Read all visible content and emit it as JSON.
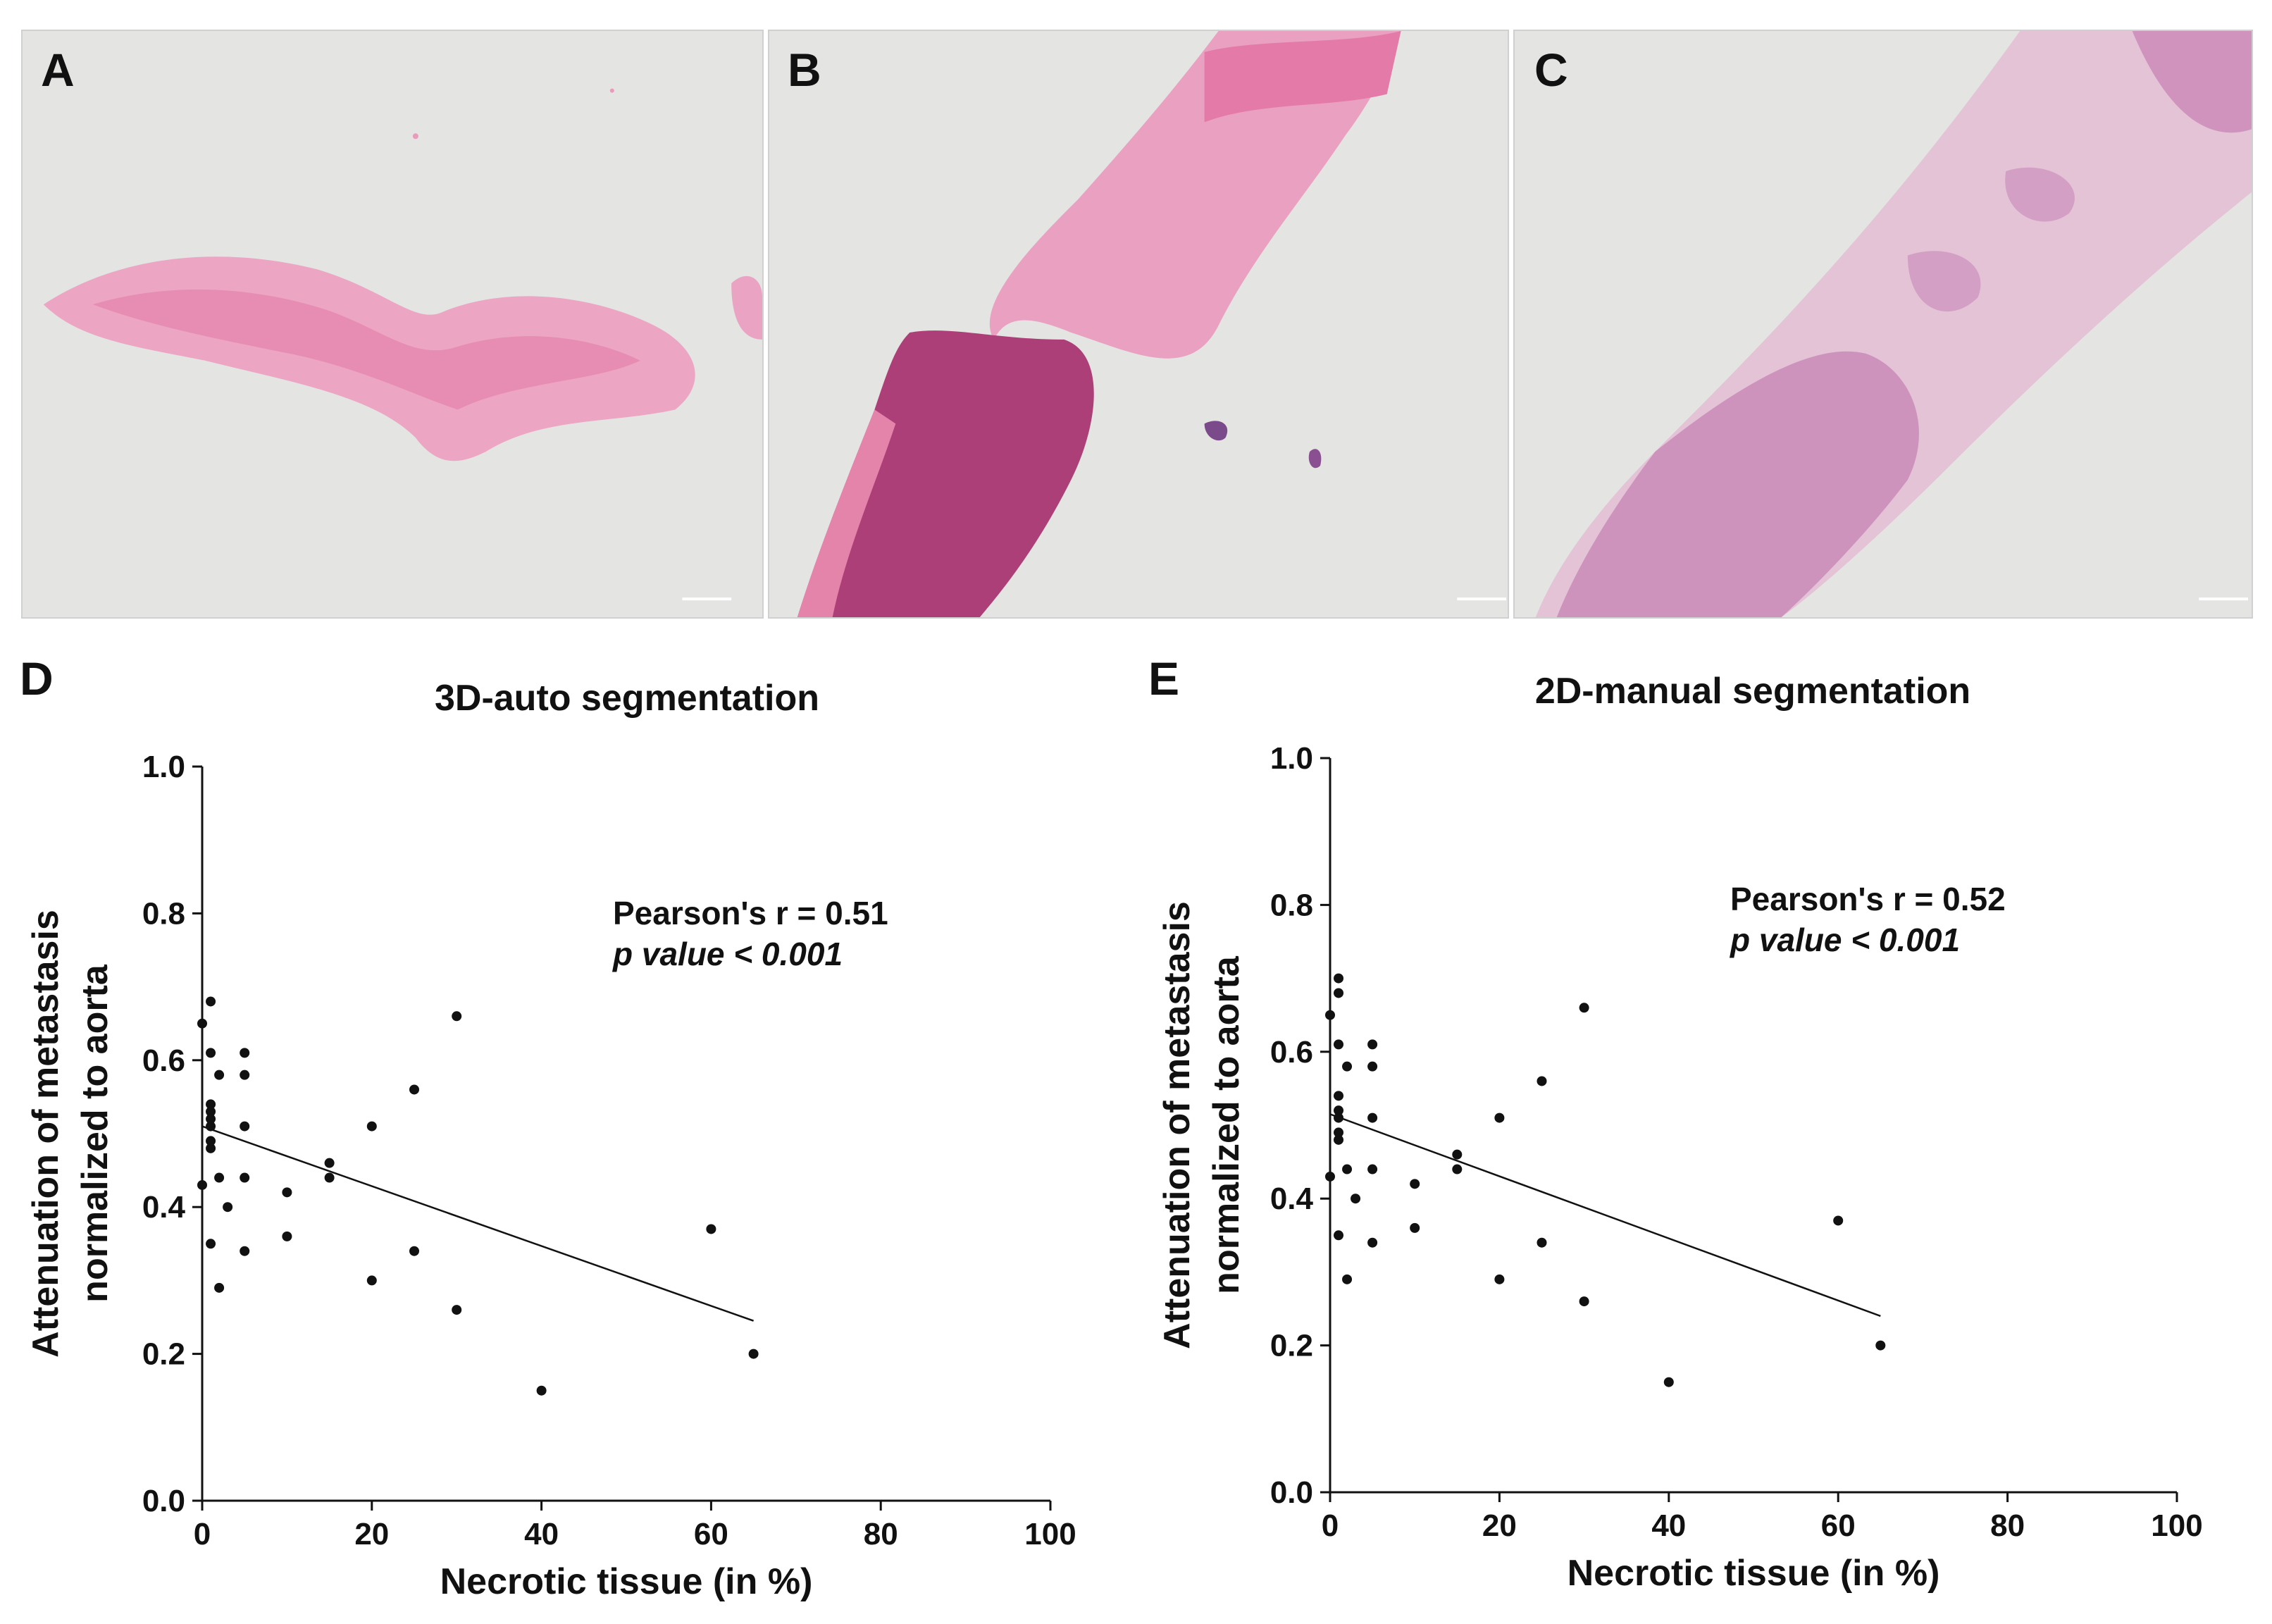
{
  "panels": {
    "A": {
      "label": "A"
    },
    "B": {
      "label": "B"
    },
    "C": {
      "label": "C"
    },
    "D": {
      "label": "D"
    },
    "E": {
      "label": "E"
    }
  },
  "colors": {
    "background_slide": "#e4e4e2",
    "tissue_pink": "#e98fb3",
    "tissue_dark": "#b2447e",
    "tissue_pale": "#e2bfd3",
    "tissue_purple": "#c88ab8",
    "points": "#111111"
  },
  "chart_data": [
    {
      "type": "scatter",
      "panel": "D",
      "title": "3D-auto segmentation",
      "xlabel": "Necrotic tissue (in %)",
      "ylabel_line1": "Attenuation of metastasis",
      "ylabel_line2": "normalized to aorta",
      "xlim": [
        0,
        100
      ],
      "ylim": [
        0,
        1.0
      ],
      "xticks": [
        "0",
        "20",
        "40",
        "60",
        "80",
        "100"
      ],
      "yticks": [
        "0.0",
        "0.2",
        "0.4",
        "0.6",
        "0.8",
        "1.0"
      ],
      "annotation_line1": "Pearson's r = 0.51",
      "annotation_line2": "p value < 0.001",
      "regression": {
        "x": [
          0,
          65
        ],
        "y": [
          0.51,
          0.245
        ]
      },
      "points": [
        [
          0,
          0.65
        ],
        [
          0,
          0.43
        ],
        [
          1,
          0.68
        ],
        [
          1,
          0.61
        ],
        [
          1,
          0.54
        ],
        [
          1,
          0.53
        ],
        [
          1,
          0.52
        ],
        [
          1,
          0.51
        ],
        [
          1,
          0.49
        ],
        [
          1,
          0.48
        ],
        [
          1,
          0.35
        ],
        [
          2,
          0.58
        ],
        [
          2,
          0.44
        ],
        [
          2,
          0.29
        ],
        [
          3,
          0.4
        ],
        [
          5,
          0.61
        ],
        [
          5,
          0.58
        ],
        [
          5,
          0.51
        ],
        [
          5,
          0.44
        ],
        [
          5,
          0.34
        ],
        [
          10,
          0.42
        ],
        [
          10,
          0.36
        ],
        [
          15,
          0.46
        ],
        [
          15,
          0.44
        ],
        [
          20,
          0.51
        ],
        [
          20,
          0.3
        ],
        [
          25,
          0.56
        ],
        [
          25,
          0.34
        ],
        [
          30,
          0.66
        ],
        [
          30,
          0.26
        ],
        [
          40,
          0.15
        ],
        [
          60,
          0.37
        ],
        [
          65,
          0.2
        ]
      ]
    },
    {
      "type": "scatter",
      "panel": "E",
      "title": "2D-manual segmentation",
      "xlabel": "Necrotic tissue (in %)",
      "ylabel_line1": "Attenuation of metastasis",
      "ylabel_line2": "normalized to aorta",
      "xlim": [
        0,
        100
      ],
      "ylim": [
        0,
        1.0
      ],
      "xticks": [
        "0",
        "20",
        "40",
        "60",
        "80",
        "100"
      ],
      "yticks": [
        "0.0",
        "0.2",
        "0.4",
        "0.6",
        "0.8",
        "1.0"
      ],
      "annotation_line1": "Pearson's r = 0.52",
      "annotation_line2": "p value < 0.001",
      "regression": {
        "x": [
          0,
          65
        ],
        "y": [
          0.515,
          0.24
        ]
      },
      "points": [
        [
          0,
          0.65
        ],
        [
          0,
          0.43
        ],
        [
          1,
          0.7
        ],
        [
          1,
          0.68
        ],
        [
          1,
          0.61
        ],
        [
          1,
          0.54
        ],
        [
          1,
          0.52
        ],
        [
          1,
          0.51
        ],
        [
          1,
          0.49
        ],
        [
          1,
          0.48
        ],
        [
          1,
          0.35
        ],
        [
          2,
          0.58
        ],
        [
          2,
          0.44
        ],
        [
          2,
          0.29
        ],
        [
          3,
          0.4
        ],
        [
          5,
          0.61
        ],
        [
          5,
          0.58
        ],
        [
          5,
          0.51
        ],
        [
          5,
          0.44
        ],
        [
          5,
          0.34
        ],
        [
          10,
          0.42
        ],
        [
          10,
          0.36
        ],
        [
          15,
          0.46
        ],
        [
          15,
          0.44
        ],
        [
          20,
          0.51
        ],
        [
          20,
          0.29
        ],
        [
          25,
          0.56
        ],
        [
          25,
          0.34
        ],
        [
          30,
          0.66
        ],
        [
          30,
          0.26
        ],
        [
          40,
          0.15
        ],
        [
          60,
          0.37
        ],
        [
          65,
          0.2
        ]
      ]
    }
  ]
}
